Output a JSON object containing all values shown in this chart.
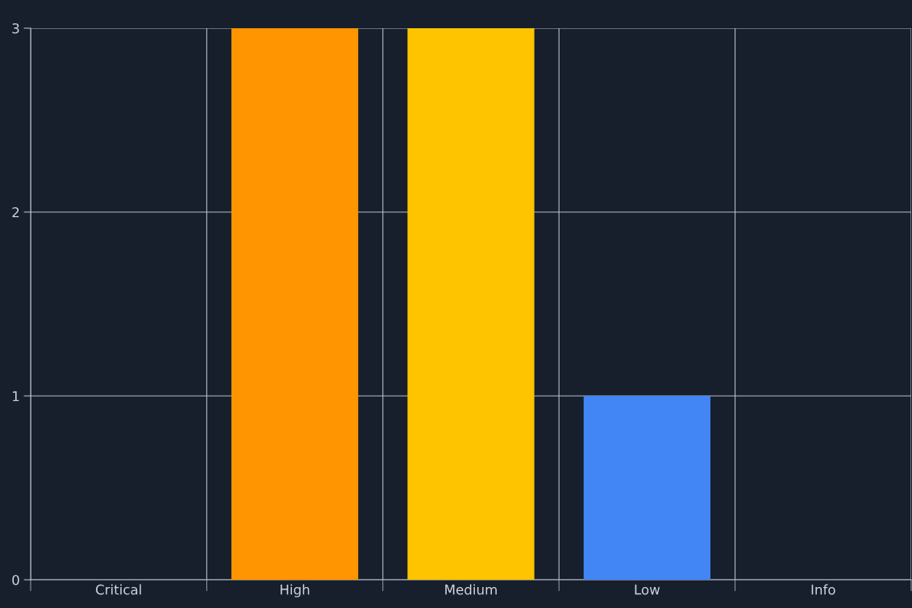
{
  "chart_data": {
    "type": "bar",
    "categories": [
      "Critical",
      "High",
      "Medium",
      "Low",
      "Info"
    ],
    "values": [
      0,
      3,
      3,
      1,
      0
    ],
    "colors": [
      "#ea4335",
      "#ff9500",
      "#ffc400",
      "#4285f4",
      "#9aa0a6"
    ],
    "ylim": [
      0,
      3
    ],
    "yticks": [
      0,
      1,
      2,
      3
    ],
    "grid": true
  }
}
